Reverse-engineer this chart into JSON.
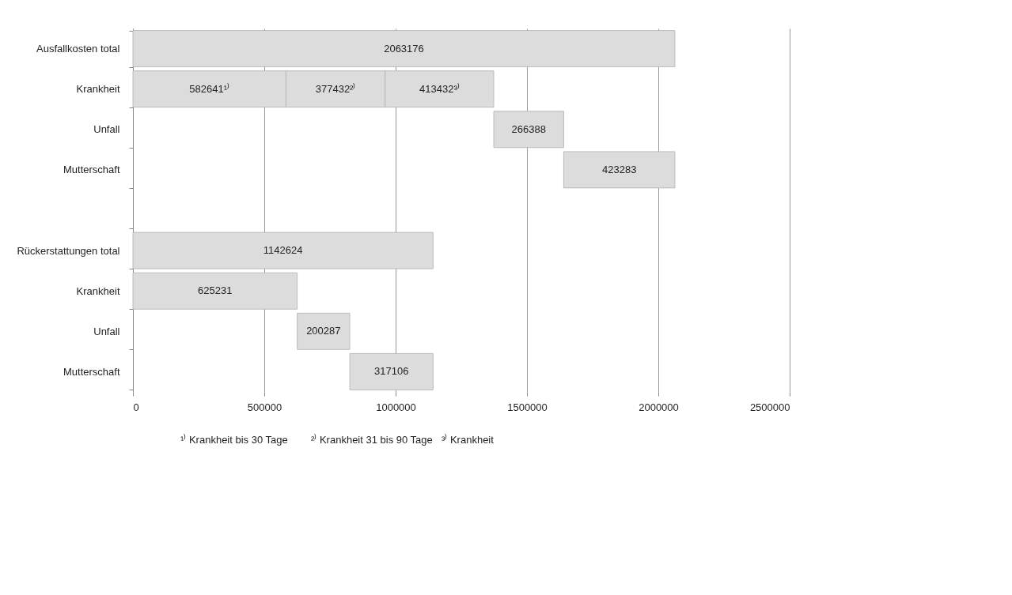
{
  "chart_data": {
    "type": "bar",
    "orientation": "horizontal",
    "categories": [
      "Ausfallkosten total",
      "Krankheit",
      "Unfall",
      "Mutterschaft",
      null,
      "Rückerstattungen total",
      "Krankheit",
      "Unfall",
      "Mutterschaft"
    ],
    "series": [
      {
        "color": "#dcdcdd",
        "values": [
          2063176,
          582641,
          266388,
          423283,
          null,
          1142624,
          625231,
          200287,
          317106
        ],
        "base": [
          0,
          0,
          1373505,
          1639893,
          null,
          0,
          0,
          625231,
          825518
        ],
        "value_labels": [
          "2063176",
          "582641¹⁾",
          "266388",
          "423283",
          null,
          "1142624",
          "625231",
          "200287",
          "317106"
        ]
      },
      {
        "color": "#dcdcdd",
        "values": [
          null,
          377432,
          null,
          null,
          null,
          null,
          null,
          null,
          null
        ],
        "base": [
          null,
          582641,
          null,
          null,
          null,
          null,
          null,
          null,
          null
        ],
        "value_labels": [
          null,
          "377432²⁾",
          null,
          null,
          null,
          null,
          null,
          null,
          null
        ]
      },
      {
        "color": "#dcdcdd",
        "values": [
          null,
          413432,
          null,
          null,
          null,
          null,
          null,
          null,
          null
        ],
        "base": [
          null,
          960073,
          null,
          null,
          null,
          null,
          null,
          null,
          null
        ],
        "value_labels": [
          null,
          "413432³⁾",
          null,
          null,
          null,
          null,
          null,
          null,
          null
        ]
      }
    ],
    "xlim": [
      0,
      2500000
    ],
    "xticks": [
      0,
      500000,
      1000000,
      1500000,
      2000000,
      2500000
    ],
    "grid": "x",
    "annotations": [
      "¹⁾ Krankheit bis 30 Tage",
      "²⁾ Krankheit 31 bis 90 Tage",
      "³⁾ Krankheit"
    ]
  }
}
